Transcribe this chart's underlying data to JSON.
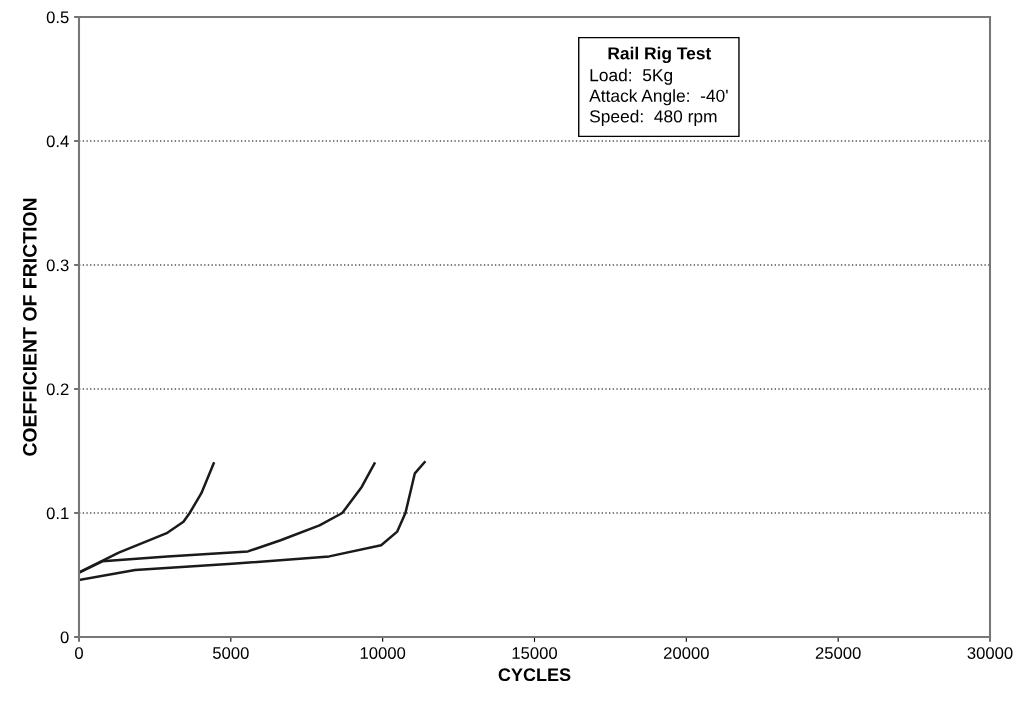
{
  "chart_data": {
    "type": "line",
    "xlabel": "CYCLES",
    "ylabel": "COEFFICIENT OF FRICTION",
    "series": [
      {
        "color": "#1a1a1a",
        "x": [
          0,
          400,
          1310,
          2910,
          3440,
          3645,
          4030,
          4435
        ],
        "values": [
          0.052,
          0.057,
          0.068,
          0.084,
          0.093,
          0.1,
          0.116,
          0.14
        ]
      },
      {
        "color": "#1a1a1a",
        "x": [
          0,
          770,
          2910,
          5560,
          6640,
          7920,
          8670,
          9310,
          9730
        ],
        "values": [
          0.052,
          0.061,
          0.065,
          0.069,
          0.078,
          0.09,
          0.1,
          0.121,
          0.14
        ]
      },
      {
        "color": "#1a1a1a",
        "x": [
          0,
          1850,
          5040,
          8240,
          9950,
          10480,
          10750,
          11060,
          11380
        ],
        "values": [
          0.046,
          0.054,
          0.059,
          0.065,
          0.074,
          0.085,
          0.1,
          0.132,
          0.141
        ]
      }
    ],
    "xlim": [
      0,
      30000
    ],
    "xticks": [
      0,
      5000,
      10000,
      15000,
      20000,
      25000,
      30000
    ],
    "ylim": [
      0,
      0.5
    ],
    "yticks": [
      0,
      0.1,
      0.2,
      0.3,
      0.4,
      0.5
    ],
    "grid": "y",
    "line_style": "solid",
    "marker": "none",
    "annotations": [
      "Rail Rig Test",
      "Load:  5Kg",
      "Attack Angle:  -40'",
      "Speed:  480 rpm"
    ]
  }
}
